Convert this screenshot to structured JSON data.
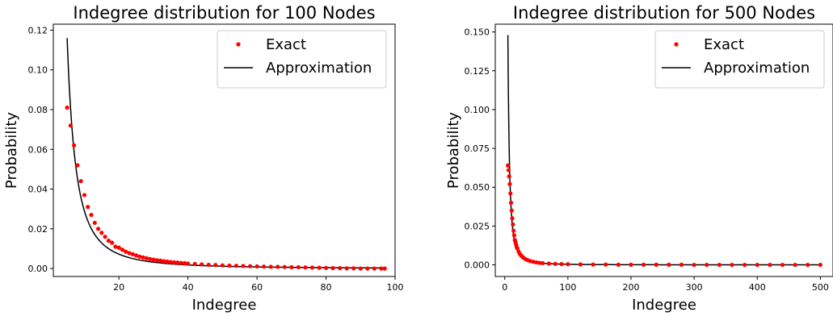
{
  "chart_data": [
    {
      "type": "scatter+line",
      "title": "Indegree distribution for 100 Nodes",
      "xlabel": "Indegree",
      "ylabel": "Probability",
      "xlim": [
        1,
        100
      ],
      "ylim": [
        -0.004,
        0.123
      ],
      "xticks": [
        "20",
        "40",
        "60",
        "80",
        "100"
      ],
      "yticks": [
        "0.00",
        "0.02",
        "0.04",
        "0.06",
        "0.08",
        "0.10",
        "0.12"
      ],
      "legend": {
        "position": "top-right",
        "entries": [
          "Exact",
          "Approximation"
        ]
      },
      "series": [
        {
          "name": "Exact",
          "kind": "points",
          "color": "#ff0000",
          "x": [
            5,
            6,
            7,
            8,
            9,
            10,
            11,
            12,
            13,
            14,
            15,
            16,
            17,
            18,
            19,
            20,
            21,
            22,
            23,
            24,
            25,
            26,
            27,
            28,
            29,
            30,
            31,
            32,
            33,
            34,
            35,
            36,
            37,
            38,
            39,
            40,
            42,
            44,
            46,
            48,
            50,
            52,
            54,
            56,
            58,
            60,
            62,
            64,
            66,
            68,
            70,
            72,
            74,
            76,
            78,
            80,
            82,
            84,
            86,
            88,
            90,
            92,
            94,
            96,
            97
          ],
          "y": [
            0.081,
            0.072,
            0.062,
            0.052,
            0.044,
            0.037,
            0.031,
            0.027,
            0.023,
            0.02,
            0.018,
            0.016,
            0.014,
            0.013,
            0.011,
            0.0105,
            0.0095,
            0.0085,
            0.0078,
            0.0072,
            0.0066,
            0.006,
            0.0056,
            0.0052,
            0.0048,
            0.0045,
            0.0042,
            0.004,
            0.0037,
            0.0035,
            0.0033,
            0.0031,
            0.003,
            0.0028,
            0.0027,
            0.0025,
            0.0023,
            0.0021,
            0.0019,
            0.0018,
            0.0016,
            0.0015,
            0.0014,
            0.0013,
            0.0012,
            0.0011,
            0.001,
            0.0009,
            0.0009,
            0.0008,
            0.0007,
            0.0007,
            0.0006,
            0.0005,
            0.0004,
            0.0003,
            0.0002,
            0.0002,
            0.0001,
            0.0001,
            0.0,
            0.0,
            0.0,
            0.0,
            0.0
          ]
        },
        {
          "name": "Approximation",
          "kind": "line",
          "color": "#000000",
          "function": "power",
          "coefficient": 2.9,
          "exponent": -2,
          "x_range": [
            5,
            97
          ]
        }
      ]
    },
    {
      "type": "scatter+line",
      "title": "Indegree distribution for 500 Nodes",
      "xlabel": "Indegree",
      "ylabel": "Probability",
      "xlim": [
        -15,
        520
      ],
      "ylim": [
        -0.0075,
        0.155
      ],
      "xticks": [
        "0",
        "100",
        "200",
        "300",
        "400",
        "500"
      ],
      "yticks": [
        "0.000",
        "0.025",
        "0.050",
        "0.075",
        "0.100",
        "0.125",
        "0.150"
      ],
      "legend": {
        "position": "top-right",
        "entries": [
          "Exact",
          "Approximation"
        ]
      },
      "series": [
        {
          "name": "Exact",
          "kind": "points",
          "color": "#ff0000",
          "x": [
            5,
            6,
            7,
            8,
            9,
            10,
            11,
            12,
            13,
            14,
            15,
            16,
            17,
            18,
            19,
            20,
            22,
            24,
            26,
            28,
            30,
            33,
            36,
            40,
            45,
            50,
            55,
            60,
            70,
            80,
            90,
            100,
            120,
            140,
            160,
            180,
            200,
            220,
            240,
            260,
            280,
            300,
            320,
            340,
            360,
            380,
            400,
            420,
            440,
            460,
            480,
            500
          ],
          "y": [
            0.064,
            0.061,
            0.057,
            0.052,
            0.046,
            0.04,
            0.035,
            0.03,
            0.026,
            0.022,
            0.019,
            0.016,
            0.0145,
            0.013,
            0.0115,
            0.0105,
            0.0085,
            0.007,
            0.006,
            0.0052,
            0.0045,
            0.0037,
            0.0031,
            0.0025,
            0.002,
            0.0016,
            0.0013,
            0.0011,
            0.0008,
            0.0006,
            0.0005,
            0.0004,
            0.0003,
            0.0002,
            0.0002,
            0.0001,
            0.0001,
            0.0001,
            0.0001,
            0.0001,
            0.0001,
            0.0,
            0.0,
            0.0,
            0.0,
            0.0,
            0.0,
            0.0,
            0.0,
            0.0,
            0.0,
            0.0
          ]
        },
        {
          "name": "Approximation",
          "kind": "line",
          "color": "#000000",
          "function": "power",
          "coefficient": 3.7,
          "exponent": -2,
          "x_range": [
            5,
            500
          ]
        }
      ]
    }
  ]
}
